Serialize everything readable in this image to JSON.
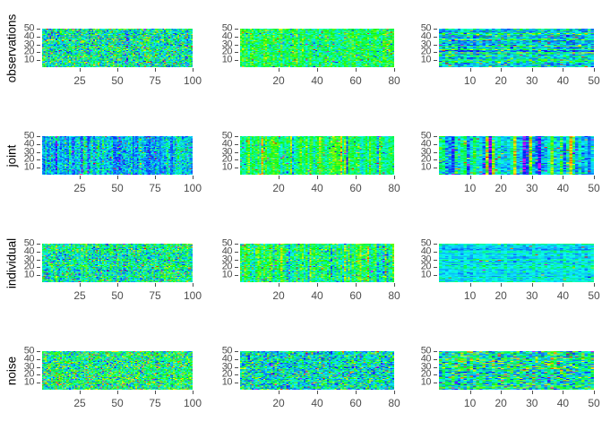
{
  "figure": {
    "background": "#ffffff",
    "tick_color": "#4d4d4d",
    "label_color": "#000000"
  },
  "chart_data": {
    "type": "heatmap",
    "title": "",
    "grid": {
      "rows": 4,
      "cols": 3
    },
    "row_labels": [
      "observations",
      "joint",
      "individual",
      "noise"
    ],
    "y_axis": {
      "ticks": [
        10,
        20,
        30,
        40,
        50
      ],
      "range": [
        0,
        50
      ],
      "n_cells": 50
    },
    "x_axes": [
      {
        "ticks": [
          25,
          50,
          75,
          100
        ],
        "range": [
          0,
          100
        ],
        "n_cells": 100
      },
      {
        "ticks": [
          20,
          40,
          60,
          80
        ],
        "range": [
          0,
          80
        ],
        "n_cells": 80
      },
      {
        "ticks": [
          10,
          20,
          30,
          40,
          50
        ],
        "range": [
          0,
          50
        ],
        "n_cells": 50
      }
    ],
    "legend": "none",
    "palette": {
      "style": "rainbow-jet",
      "stops_value_hue": [
        [
          0,
          250
        ],
        [
          0.25,
          215
        ],
        [
          0.4,
          180
        ],
        [
          0.55,
          130
        ],
        [
          0.75,
          60
        ],
        [
          0.9,
          25
        ],
        [
          1,
          0
        ]
      ],
      "below_zero_hue": 288,
      "saturation_pct": 95,
      "lightness_pct": 51,
      "named_colors": [
        "#8800cc",
        "#2222ee",
        "#00e5ee",
        "#22e04a",
        "#eaea00",
        "#ee8800",
        "#ee2222"
      ]
    },
    "panels": [
      {
        "row": 0,
        "col": 0,
        "seed": 101,
        "base": 0.47,
        "noise": 0.15,
        "col_effect": 0.03,
        "row_effect": 0.03,
        "strong_col_prob": 0.05,
        "strong_col_amp": 0.2,
        "speck_prob": 0.07,
        "desc": "random green/cyan noise with scattered blue, red, yellow specks"
      },
      {
        "row": 0,
        "col": 1,
        "seed": 102,
        "base": 0.53,
        "noise": 0.09,
        "col_effect": 0.04,
        "row_effect": 0.01,
        "strong_col_prob": 0.05,
        "strong_col_amp": 0.15,
        "speck_prob": 0.05,
        "desc": "predominantly bright green noise with sparse yellow/cyan/blue specks"
      },
      {
        "row": 0,
        "col": 2,
        "seed": 103,
        "base": 0.41,
        "noise": 0.12,
        "col_effect": 0.02,
        "row_effect": 0.09,
        "strong_col_prob": 0.0,
        "strong_col_amp": 0.0,
        "speck_prob": 0.05,
        "desc": "cyan/green/blue noise with horizontal streaking"
      },
      {
        "row": 1,
        "col": 0,
        "seed": 201,
        "base": 0.34,
        "noise": 0.1,
        "col_effect": 0.07,
        "row_effect": 0.02,
        "strong_col_prob": 0.15,
        "strong_col_amp": 0.2,
        "speck_prob": 0.04,
        "desc": "dense cyan/blue with vertical striping, occasional green and magenta"
      },
      {
        "row": 1,
        "col": 1,
        "seed": 202,
        "base": 0.52,
        "noise": 0.07,
        "col_effect": 0.05,
        "row_effect": 0.01,
        "strong_col_prob": 0.2,
        "strong_col_amp": 0.25,
        "speck_prob": 0.04,
        "desc": "green background with vertical colored stripes (blue/yellow/red)"
      },
      {
        "row": 1,
        "col": 2,
        "seed": 203,
        "base": 0.38,
        "noise": 0.07,
        "col_effect": 0.06,
        "row_effect": 0.02,
        "strong_col_prob": 0.45,
        "strong_col_amp": 0.35,
        "speck_prob": 0.05,
        "desc": "cyan background with strong multicolor vertical stripes"
      },
      {
        "row": 2,
        "col": 0,
        "seed": 301,
        "base": 0.46,
        "noise": 0.13,
        "col_effect": 0.04,
        "row_effect": 0.04,
        "strong_col_prob": 0.05,
        "strong_col_amp": 0.15,
        "speck_prob": 0.06,
        "desc": "green/cyan random noise with colored specks"
      },
      {
        "row": 2,
        "col": 1,
        "seed": 302,
        "base": 0.51,
        "noise": 0.09,
        "col_effect": 0.07,
        "row_effect": 0.02,
        "strong_col_prob": 0.12,
        "strong_col_amp": 0.2,
        "speck_prob": 0.05,
        "desc": "green noise with light vertical striping and cyan patches"
      },
      {
        "row": 2,
        "col": 2,
        "seed": 303,
        "base": 0.4,
        "noise": 0.05,
        "col_effect": 0.02,
        "row_effect": 0.05,
        "strong_col_prob": 0.1,
        "strong_col_amp": 0.45,
        "speck_prob": 0.02,
        "desc": "flat cyan background with a few strong multicolor vertical stripes"
      },
      {
        "row": 3,
        "col": 0,
        "seed": 401,
        "base": 0.5,
        "noise": 0.15,
        "col_effect": 0.02,
        "row_effect": 0.02,
        "strong_col_prob": 0.0,
        "strong_col_amp": 0.0,
        "speck_prob": 0.07,
        "desc": "green-dominant random noise, many colored specks"
      },
      {
        "row": 3,
        "col": 1,
        "seed": 402,
        "base": 0.42,
        "noise": 0.15,
        "col_effect": 0.02,
        "row_effect": 0.03,
        "strong_col_prob": 0.0,
        "strong_col_amp": 0.0,
        "speck_prob": 0.06,
        "desc": "cyan/green random noise with dense blue specks"
      },
      {
        "row": 3,
        "col": 2,
        "seed": 403,
        "base": 0.46,
        "noise": 0.16,
        "col_effect": 0.02,
        "row_effect": 0.04,
        "strong_col_prob": 0.0,
        "strong_col_amp": 0.0,
        "speck_prob": 0.08,
        "desc": "green/cyan random noise with yellow/red/purple specks"
      }
    ]
  }
}
